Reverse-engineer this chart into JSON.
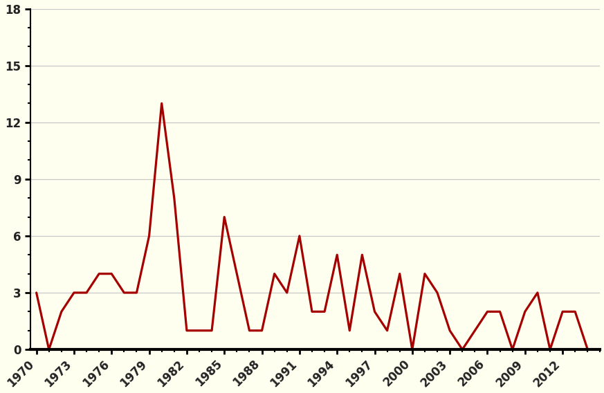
{
  "years": [
    1970,
    1971,
    1972,
    1973,
    1974,
    1975,
    1976,
    1977,
    1978,
    1979,
    1980,
    1981,
    1982,
    1983,
    1984,
    1985,
    1986,
    1987,
    1988,
    1989,
    1990,
    1991,
    1992,
    1993,
    1994,
    1995,
    1996,
    1997,
    1998,
    1999,
    2000,
    2001,
    2002,
    2003,
    2004,
    2005,
    2006,
    2007,
    2008,
    2009,
    2010,
    2011,
    2012,
    2013,
    2014
  ],
  "values": [
    3,
    0,
    2,
    3,
    3,
    4,
    4,
    3,
    3,
    6,
    13,
    8,
    1,
    1,
    1,
    7,
    4,
    1,
    1,
    4,
    3,
    6,
    2,
    2,
    5,
    1,
    5,
    2,
    1,
    4,
    0,
    4,
    3,
    1,
    0,
    1,
    2,
    2,
    0,
    2,
    3,
    0,
    2,
    2,
    0
  ],
  "line_color": "#a50000",
  "background_color": "#fffff0",
  "grid_color": "#c8c8c8",
  "axis_color": "#000000",
  "tick_label_color": "#222222",
  "ylim": [
    0,
    18
  ],
  "yticks": [
    0,
    3,
    6,
    9,
    12,
    15,
    18
  ],
  "xtick_labels": [
    "1970",
    "1973",
    "1976",
    "1979",
    "1982",
    "1985",
    "1988",
    "1991",
    "1994",
    "1997",
    "2000",
    "2003",
    "2006",
    "2009",
    "2012"
  ],
  "xtick_positions": [
    1970,
    1973,
    1976,
    1979,
    1982,
    1985,
    1988,
    1991,
    1994,
    1997,
    2000,
    2003,
    2006,
    2009,
    2012
  ],
  "linewidth": 2.3,
  "xlim_left": 1969.5,
  "xlim_right": 2015.0
}
